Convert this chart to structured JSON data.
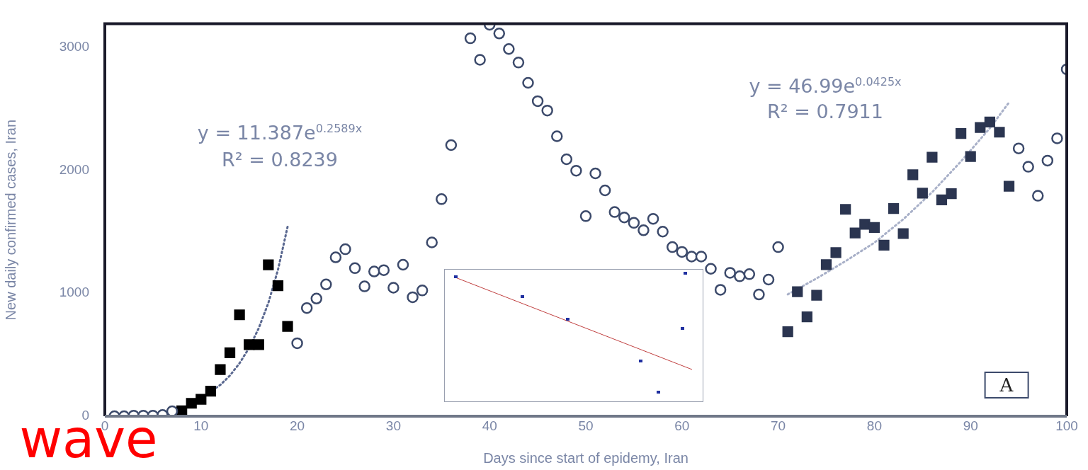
{
  "chart_data": {
    "type": "scatter",
    "xlabel": "Days since start of epidemy, Iran",
    "ylabel": "New daily confirmed cases, Iran",
    "xlim": [
      0,
      100
    ],
    "xticks": [
      0,
      10,
      20,
      30,
      40,
      50,
      60,
      70,
      80,
      90,
      100
    ],
    "ylim": [
      0,
      3190
    ],
    "yticks": [
      0,
      1000,
      2000,
      3000
    ],
    "grid": false,
    "legend": false,
    "series": [
      {
        "marker": "circle",
        "color": "#3c4a6b",
        "x": [
          1,
          2,
          3,
          4,
          5,
          6,
          7,
          20,
          21,
          22,
          23,
          24,
          25,
          26,
          27,
          28,
          29,
          30,
          31,
          32,
          33,
          34,
          35,
          36,
          38,
          39,
          40,
          41,
          42,
          43,
          44,
          45,
          46,
          47,
          48,
          49,
          50,
          51,
          52,
          53,
          54,
          55,
          56,
          57,
          58,
          59,
          60,
          61,
          62,
          63,
          64,
          65,
          66,
          67,
          68,
          69,
          70,
          95,
          96,
          97,
          98,
          99,
          100
        ],
        "values": [
          0,
          0,
          5,
          5,
          5,
          10,
          40,
          593,
          879,
          956,
          1071,
          1291,
          1357,
          1203,
          1055,
          1176,
          1187,
          1044,
          1231,
          967,
          1022,
          1412,
          1764,
          2203,
          3071,
          2896,
          3181,
          3110,
          2984,
          2874,
          2709,
          2560,
          2484,
          2275,
          2088,
          1995,
          1626,
          1973,
          1835,
          1659,
          1615,
          1571,
          1511,
          1604,
          1500,
          1374,
          1335,
          1297,
          1297,
          1198,
          1027,
          1165,
          1137,
          1154,
          989,
          1110,
          1374,
          2176,
          2027,
          1791,
          2077,
          2258,
          2819
        ]
      },
      {
        "marker": "square",
        "color": "#000000",
        "x": [
          8,
          9,
          10,
          11,
          12,
          13,
          14,
          15,
          16,
          17,
          18,
          19
        ],
        "values": [
          44,
          105,
          137,
          204,
          379,
          516,
          824,
          582,
          582,
          1230,
          1060,
          730
        ]
      },
      {
        "marker": "square",
        "color": "#2b3550",
        "x": [
          71,
          72,
          73,
          74,
          75,
          76,
          77,
          78,
          79,
          80,
          81,
          82,
          83,
          84,
          85,
          86,
          87,
          88,
          89,
          90,
          91,
          92,
          93,
          94
        ],
        "values": [
          687,
          1011,
          808,
          983,
          1231,
          1330,
          1681,
          1489,
          1560,
          1533,
          1390,
          1687,
          1484,
          1962,
          1813,
          2104,
          1758,
          1808,
          2297,
          2110,
          2346,
          2390,
          2308,
          1868
        ]
      },
      {
        "type": "line",
        "marker": "none",
        "line_style": "dotted",
        "color": "#5a6890",
        "x": [
          11.2,
          12,
          13,
          14,
          15,
          16,
          17,
          18,
          19
        ],
        "values": [
          210,
          254,
          330,
          430,
          555,
          715,
          920,
          1190,
          1540
        ]
      },
      {
        "type": "line",
        "marker": "none",
        "line_style": "dotted",
        "color": "#a8b0c8",
        "x": [
          71,
          74,
          77,
          80,
          83,
          86,
          89,
          92,
          94
        ],
        "values": [
          990,
          1120,
          1260,
          1410,
          1600,
          1820,
          2070,
          2340,
          2550
        ]
      }
    ],
    "annotations": [
      "y = 11.387e$^{0.2589x}$",
      "R² = 0.8239",
      "y = 46.99e$^{0.0425x}$",
      "R² = 0.7911",
      "A",
      "wave"
    ]
  }
}
